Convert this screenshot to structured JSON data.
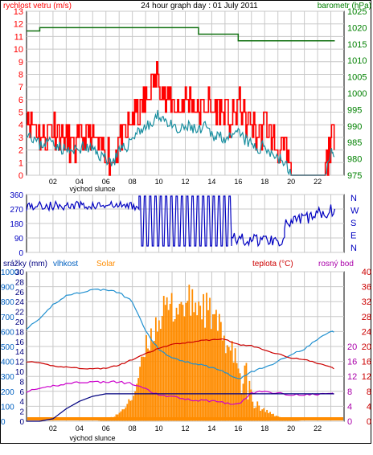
{
  "title": "24 hour graph day : 01 July 2011",
  "colors": {
    "wind": "#ff0000",
    "wind_dark": "#e00000",
    "wind_avg": "#1a8fa0",
    "barometer": "#107010",
    "direction": "#0000c0",
    "humidity": "#2090d0",
    "solar": "#ff8c00",
    "temperature": "#cc0000",
    "dewpoint": "#cc00cc",
    "rain": "#000080",
    "axis_left": "#ff0000",
    "axis_right_top": "#008000",
    "axis_mid": "#0000c0",
    "axis_bottom_left1": "#0060c0",
    "axis_bottom_left2": "#0080a0",
    "axis_bottom_right1": "#cc0000",
    "axis_bottom_right2": "#aa00aa",
    "grid": "#c8c8c8"
  },
  "x_ticks": [
    "02",
    "04",
    "06",
    "08",
    "10",
    "12",
    "14",
    "16",
    "18",
    "20",
    "22"
  ],
  "sunrise_label": "východ slunce",
  "chart_data": [
    {
      "type": "line",
      "label_left": "rychlost vetru (m/s)",
      "label_right": "barometr (hPa)",
      "ylim": [
        0,
        13
      ],
      "y2lim": [
        975,
        1025
      ],
      "yticks": [
        0,
        1,
        2,
        3,
        4,
        5,
        6,
        7,
        8,
        9,
        10,
        11,
        12,
        13
      ],
      "y2ticks": [
        975,
        980,
        985,
        990,
        995,
        1000,
        1005,
        1010,
        1015,
        1020,
        1025
      ],
      "x_hours": [
        0,
        0.5,
        1,
        1.5,
        2,
        2.5,
        3,
        3.5,
        4,
        4.5,
        5,
        5.5,
        6,
        6.5,
        7,
        7.5,
        8,
        8.5,
        9,
        9.5,
        10,
        10.5,
        11,
        11.5,
        12,
        12.5,
        13,
        13.5,
        14,
        14.5,
        15,
        15.5,
        16,
        16.5,
        17,
        17.5,
        18,
        18.5,
        19,
        19.5,
        20,
        20.5,
        21,
        21.5,
        22,
        22.5,
        23,
        23.3
      ],
      "series": [
        {
          "key": "gust",
          "values": [
            5,
            4,
            3,
            3,
            4,
            3,
            3,
            2,
            3,
            3,
            3,
            2,
            2,
            1,
            3,
            3,
            5,
            5,
            6,
            7,
            8,
            6,
            6,
            5,
            6,
            6,
            5,
            6,
            5,
            5,
            5,
            4,
            6,
            4,
            4,
            3,
            4,
            3,
            2,
            2,
            0,
            0,
            0,
            0,
            0,
            0,
            3,
            3
          ]
        },
        {
          "key": "avg",
          "values": [
            3.6,
            3.0,
            2.4,
            2.6,
            2.8,
            2.2,
            2.0,
            1.8,
            2.2,
            2.2,
            2.0,
            1.6,
            1.4,
            1.0,
            1.8,
            2.2,
            3.0,
            3.6,
            3.8,
            4.0,
            4.8,
            4.4,
            3.8,
            3.4,
            3.8,
            3.8,
            3.4,
            3.8,
            3.2,
            3.2,
            3.0,
            2.8,
            3.4,
            2.8,
            2.4,
            2.0,
            2.4,
            1.8,
            1.4,
            1.0,
            0,
            0,
            0,
            0,
            0,
            0,
            1.6,
            2.0
          ]
        },
        {
          "key": "barometer",
          "steps": [
            [
              0,
              1019
            ],
            [
              1,
              1020
            ],
            [
              13,
              1018
            ],
            [
              16,
              1016
            ],
            [
              23.3,
              1016
            ]
          ]
        }
      ]
    },
    {
      "type": "line",
      "ylim": [
        0,
        360
      ],
      "yticks": [
        0,
        90,
        180,
        270,
        360
      ],
      "compass": [
        "N",
        "W",
        "S",
        "E",
        "N"
      ],
      "segments": [
        {
          "from": 0,
          "to": 8.5,
          "level": 290,
          "jitter": 30
        },
        {
          "from": 8.5,
          "to": 15.5,
          "level": 0,
          "jitter": 0,
          "oscillate": [
            40,
            350
          ]
        },
        {
          "from": 15.5,
          "to": 19.5,
          "level": 80,
          "jitter": 40
        },
        {
          "from": 19.5,
          "to": 23.3,
          "level": 170,
          "jitter": 40,
          "rise_to": 270
        }
      ]
    },
    {
      "type": "area",
      "labels": [
        "srážky (mm)",
        "vlhkost",
        "Solar",
        "teplota (°C)",
        "rosný bod"
      ],
      "left_ticks_solar": [
        0,
        100,
        200,
        300,
        400,
        500,
        600,
        700,
        800,
        900,
        1000
      ],
      "left_ticks_humidity": [
        0,
        10,
        20,
        30,
        40,
        50,
        60,
        70,
        80,
        90,
        100
      ],
      "left_ticks_rain": [
        0,
        2,
        4,
        6,
        8,
        10,
        12,
        14,
        16,
        18,
        20,
        22,
        24,
        26,
        28,
        30
      ],
      "right_ticks": [
        0,
        4,
        8,
        12,
        16,
        20,
        24,
        28,
        32,
        36,
        40
      ],
      "right_ticks_dew": [
        0,
        4,
        8,
        12,
        16,
        20
      ],
      "x_hours": [
        0,
        1,
        2,
        3,
        4,
        5,
        6,
        7,
        8,
        9,
        10,
        11,
        12,
        13,
        14,
        15,
        16,
        17,
        18,
        19,
        20,
        21,
        22,
        23,
        23.3
      ],
      "solar": [
        0,
        0,
        0,
        0,
        0,
        0,
        10,
        60,
        180,
        550,
        780,
        850,
        870,
        870,
        780,
        600,
        420,
        200,
        80,
        30,
        10,
        0,
        0,
        0,
        0
      ],
      "humidity": [
        62,
        68,
        78,
        84,
        86,
        88,
        88,
        86,
        80,
        60,
        48,
        42,
        40,
        38,
        36,
        33,
        28,
        33,
        36,
        40,
        45,
        48,
        55,
        60,
        60
      ],
      "temperature": [
        16,
        15.5,
        14.8,
        14.5,
        14.2,
        14.0,
        14.2,
        15.0,
        16.5,
        18,
        19.5,
        20.5,
        21,
        21.5,
        21.8,
        22,
        20.5,
        20.2,
        19,
        18,
        17,
        16.5,
        15.5,
        14.5,
        14
      ],
      "dewpoint": [
        8,
        8.5,
        9.5,
        10,
        10.5,
        10.5,
        10.5,
        10.5,
        10,
        8.5,
        7,
        6.5,
        6,
        5.5,
        5.5,
        5,
        4.5,
        7.5,
        8,
        7.5,
        7.2,
        7.0,
        7.2,
        7.4,
        7.4
      ],
      "rain": [
        0,
        0,
        0.5,
        2.5,
        4,
        5,
        5.5,
        5.5,
        5.5,
        5.5,
        5.5,
        5.5,
        5.5,
        5.5,
        5.5,
        5.5,
        5.5,
        5.5,
        5.5,
        5.5,
        5.5,
        5.5,
        5.5,
        5.5,
        5.5
      ]
    }
  ]
}
